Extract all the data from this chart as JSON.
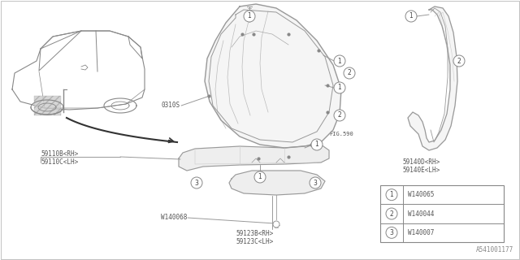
{
  "bg_color": "#ffffff",
  "line_color": "#999999",
  "text_color": "#555555",
  "diagram_id": "A541001177",
  "fig_label": "FIG.590",
  "legend": [
    {
      "num": "1",
      "code": "W140065"
    },
    {
      "num": "2",
      "code": "W140044"
    },
    {
      "num": "3",
      "code": "W140007"
    }
  ],
  "figsize": [
    6.4,
    3.2
  ],
  "dpi": 100
}
